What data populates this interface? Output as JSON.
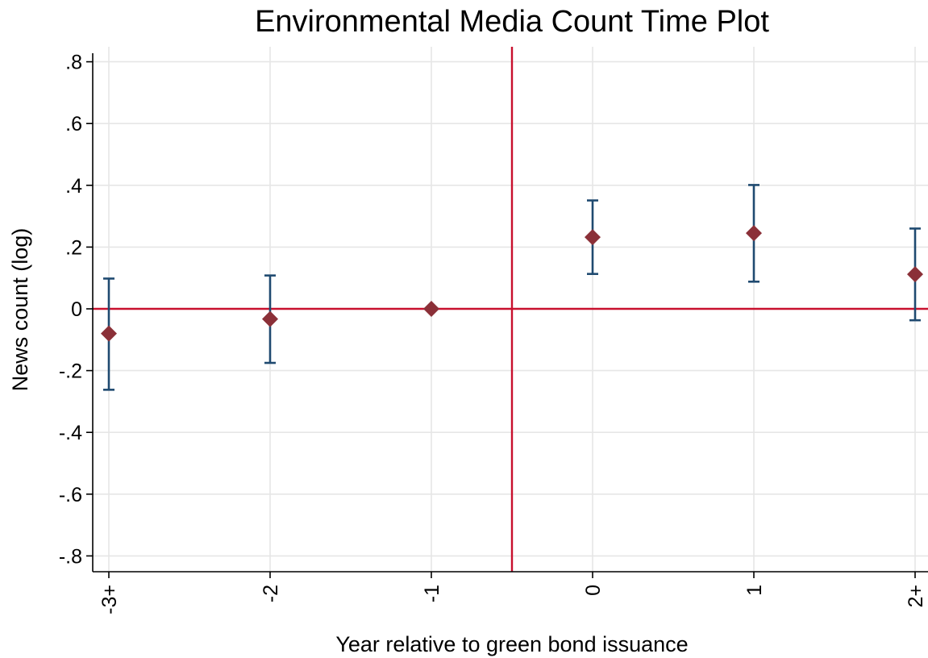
{
  "chart_data": {
    "type": "scatter",
    "title": "Environmental Media Count Time Plot",
    "xlabel": "Year relative to green bond issuance",
    "ylabel": "News count (log)",
    "categories": [
      "-3+",
      "-2",
      "-1",
      "0",
      "1",
      "2+"
    ],
    "series": [
      {
        "values": [
          -0.08,
          -0.033,
          0.0,
          0.232,
          0.245,
          0.112
        ],
        "ci_low": [
          -0.262,
          -0.175,
          0.0,
          0.113,
          0.088,
          -0.037
        ],
        "ci_high": [
          0.098,
          0.108,
          0.0,
          0.351,
          0.401,
          0.26
        ]
      }
    ],
    "ylim": [
      -0.85,
      0.85
    ],
    "yticks": [
      ".8",
      ".6",
      ".4",
      ".2",
      "0",
      "-.2",
      "-.4",
      "-.6",
      "-.8"
    ],
    "ytick_values": [
      0.8,
      0.6,
      0.4,
      0.2,
      0,
      -0.2,
      -0.4,
      -0.6,
      -0.8
    ],
    "reference_lines": {
      "horizontal_y": 0,
      "vertical_x_between": [
        "-1",
        "0"
      ]
    },
    "grid": true,
    "legend": "none",
    "colors": {
      "marker": "#8b3038",
      "ci": "#1f4a70",
      "reference": "#c8102e",
      "grid": "#e6e6e6"
    }
  }
}
